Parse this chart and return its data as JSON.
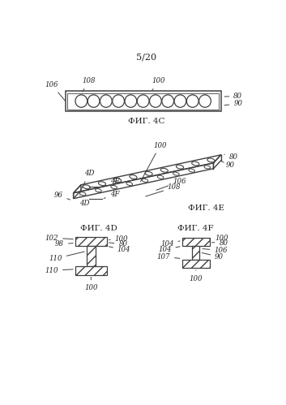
{
  "page_label": "5/20",
  "fig4c_label": "ФИГ. 4C",
  "fig4e_label": "ФИГ. 4E",
  "fig4d_label": "ФИГ. 4D",
  "fig4f_label": "ФИГ. 4F",
  "bg_color": "#ffffff",
  "line_color": "#404040",
  "text_color": "#222222"
}
